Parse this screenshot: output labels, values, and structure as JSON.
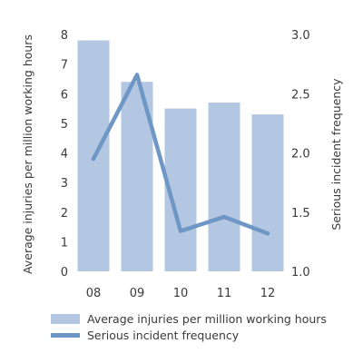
{
  "chart_data": {
    "type": "bar",
    "categories": [
      "08",
      "09",
      "10",
      "11",
      "12"
    ],
    "series": [
      {
        "name": "Average injuries per million working hours",
        "type": "bar",
        "axis": "left",
        "values": [
          7.8,
          6.4,
          5.5,
          5.7,
          5.3
        ],
        "color": "#b3c6e2"
      },
      {
        "name": "Serious incident frequency",
        "type": "line",
        "axis": "right",
        "values": [
          1.95,
          2.66,
          1.34,
          1.46,
          1.32
        ],
        "color": "#6f97c6"
      }
    ],
    "ylabel": "Average injuries per million working hours",
    "ylabel_right": "Serious incident frequency",
    "ylim": [
      0,
      8
    ],
    "ylim_right": [
      1.0,
      3.0
    ],
    "yticks": [
      "0",
      "1",
      "2",
      "3",
      "4",
      "5",
      "6",
      "7",
      "8"
    ],
    "yticks_right": [
      "1.0",
      "1.5",
      "2.0",
      "2.5",
      "3.0"
    ],
    "grid": false,
    "legend_position": "bottom"
  }
}
